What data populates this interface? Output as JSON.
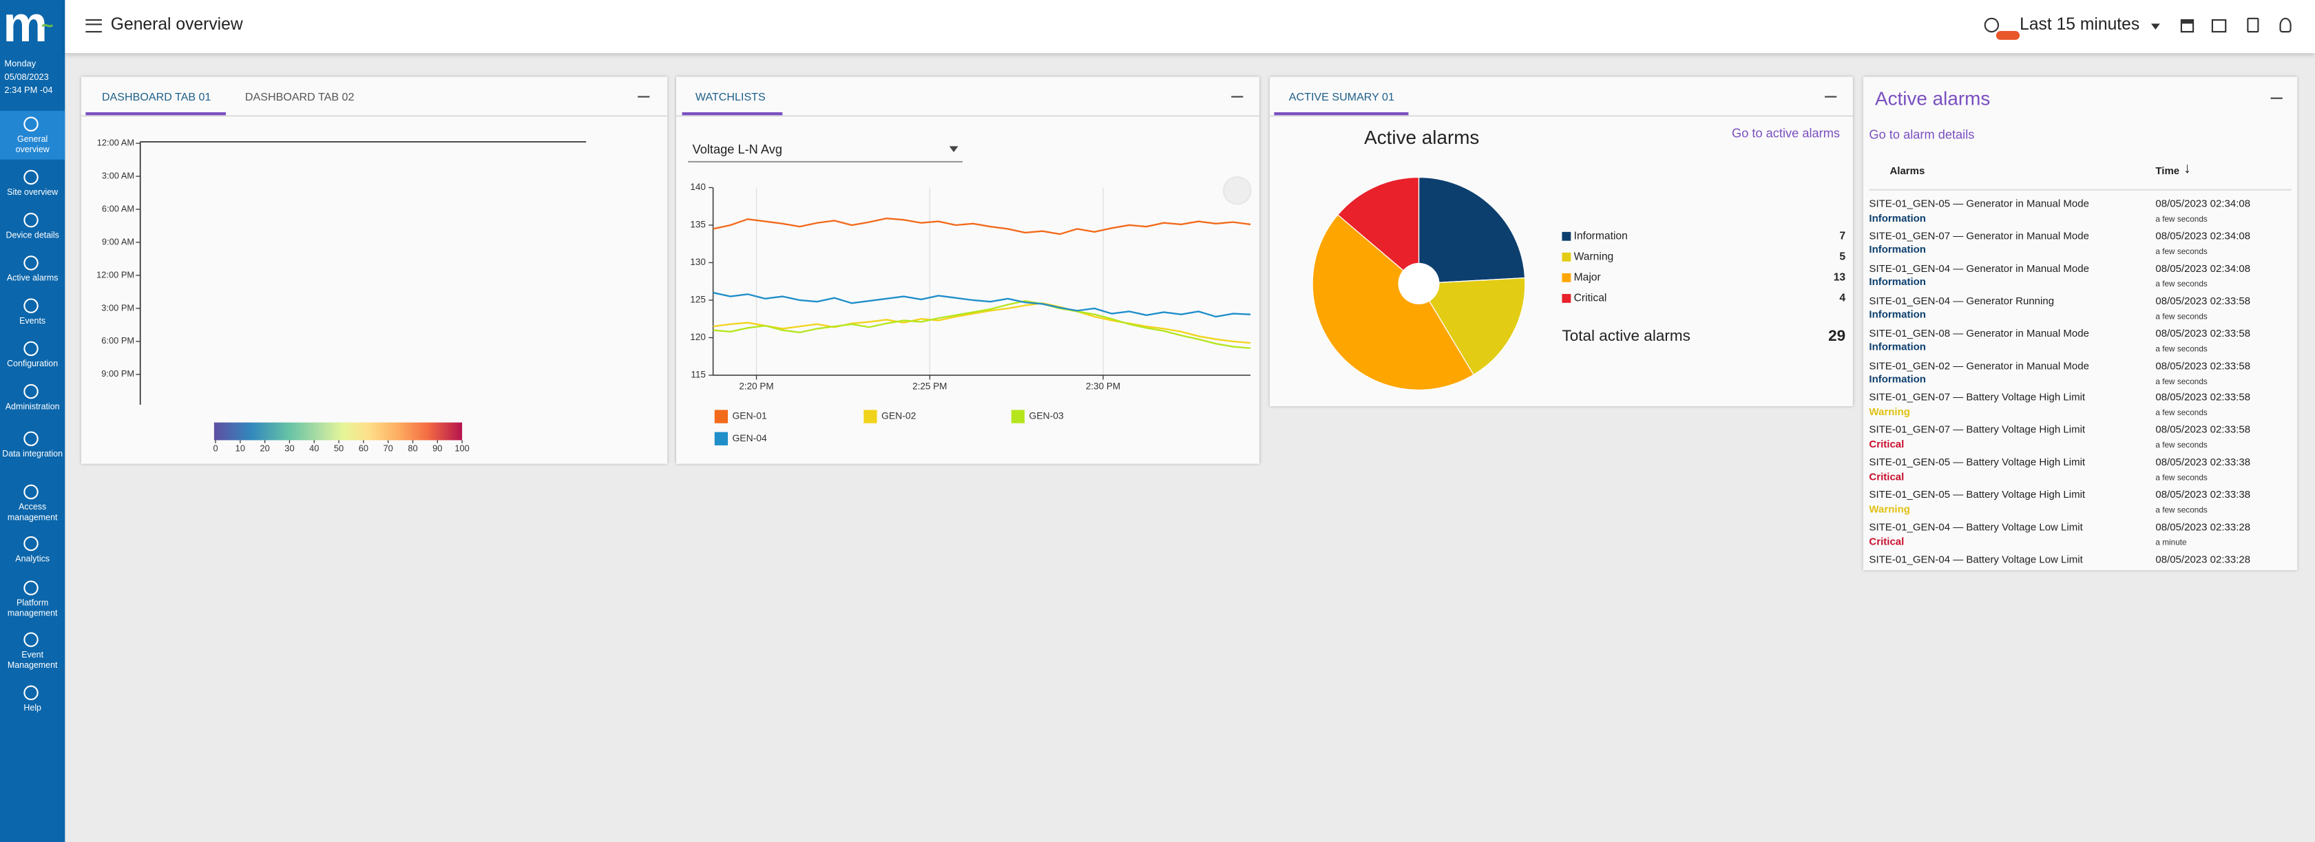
{
  "header": {
    "title": "General overview",
    "time_range": "Last 15 minutes"
  },
  "sidebar": {
    "day": "Monday",
    "date": "05/08/2023",
    "time": "2:34 PM -04",
    "items": [
      "General overview",
      "Site overview",
      "Device details",
      "Active alarms",
      "Events",
      "Configuration",
      "Administration",
      "Data integration",
      "Access management",
      "Analytics",
      "Platform management",
      "Event Management",
      "Help"
    ]
  },
  "dashboard_panel": {
    "tabs": [
      "DASHBOARD TAB 01",
      "DASHBOARD TAB 02"
    ],
    "chart": {
      "type": "heatmap",
      "yticks": [
        "12:00 AM",
        "3:00 AM",
        "6:00 AM",
        "9:00 AM",
        "12:00 PM",
        "3:00 PM",
        "6:00 PM",
        "9:00 PM"
      ],
      "colorbar_ticks": [
        0,
        10,
        20,
        30,
        40,
        50,
        60,
        70,
        80,
        90,
        100
      ]
    }
  },
  "watchlist_panel": {
    "tab": "WATCHLISTS",
    "selector": "Voltage L-N Avg",
    "chart": {
      "type": "line",
      "ylim": [
        115,
        140
      ],
      "yticks": [
        115,
        120,
        125,
        130,
        135,
        140
      ],
      "xlim": [
        0,
        31
      ],
      "xticks": [
        {
          "value": 2.5,
          "label": "2:20 PM"
        },
        {
          "value": 12.5,
          "label": "2:25 PM"
        },
        {
          "value": 22.5,
          "label": "2:30 PM"
        }
      ],
      "grid": true,
      "series": [
        {
          "name": "GEN-01",
          "color": "#f26a1b",
          "values": [
            134.5,
            135,
            135.8,
            135.5,
            135.2,
            134.8,
            135.3,
            135.6,
            135,
            135.4,
            135.9,
            135.7,
            135.3,
            135.5,
            135,
            135.2,
            134.8,
            134.5,
            134,
            134.2,
            133.8,
            134.5,
            134.1,
            134.6,
            135,
            134.8,
            135.3,
            135.1,
            135.5,
            135.2,
            135.4,
            135.1
          ]
        },
        {
          "name": "GEN-02",
          "color": "#f2d31b",
          "values": [
            121.5,
            121.8,
            122,
            121.6,
            121.2,
            121.5,
            121.8,
            121.4,
            121.9,
            122.1,
            122.4,
            122,
            122.5,
            122.3,
            122.8,
            123.2,
            123.6,
            123.9,
            124.3,
            124.6,
            124.1,
            123.5,
            122.8,
            122.3,
            121.9,
            121.5,
            121.2,
            120.8,
            120.2,
            119.8,
            119.5,
            119.3
          ]
        },
        {
          "name": "GEN-03",
          "color": "#b5e61d",
          "values": [
            121,
            120.8,
            121.3,
            121.6,
            121,
            120.7,
            121.2,
            121.5,
            121.8,
            121.4,
            121.9,
            122.3,
            122.1,
            122.6,
            123,
            123.4,
            123.8,
            124.4,
            124.9,
            124.5,
            123.9,
            123.5,
            123.1,
            122.5,
            121.8,
            121.3,
            120.9,
            120.3,
            119.8,
            119.2,
            118.8,
            118.6
          ]
        },
        {
          "name": "GEN-04",
          "color": "#1f8ec9",
          "values": [
            126,
            125.5,
            125.8,
            125.2,
            125.5,
            125,
            124.8,
            125.3,
            124.6,
            124.9,
            125.2,
            125.5,
            125.1,
            125.6,
            125.3,
            125,
            124.8,
            125.2,
            124.7,
            124.5,
            124,
            123.6,
            123.9,
            123.2,
            123.5,
            123,
            123.4,
            123.1,
            123.5,
            122.8,
            123.2,
            123.1
          ]
        }
      ]
    }
  },
  "summary_panel": {
    "tab": "ACTIVE SUMARY 01",
    "link": "Go to active alarms",
    "chart": {
      "type": "pie",
      "title": "Active alarms",
      "categories": [
        "Information",
        "Warning",
        "Major",
        "Critical"
      ],
      "values": [
        7,
        5,
        13,
        4
      ],
      "colors": [
        "#0d3f6e",
        "#e3cc14",
        "#ffa500",
        "#e8212b"
      ]
    },
    "total_label": "Total active alarms",
    "total": 29
  },
  "alarms_panel": {
    "title": "Active alarms",
    "link": "Go to alarm details",
    "columns": [
      "Alarms",
      "Time"
    ],
    "rows": [
      {
        "alarm": "SITE-01_GEN-05 — Generator in Manual Mode",
        "severity": "Information",
        "time": "08/05/2023 02:34:08",
        "age": "a few seconds"
      },
      {
        "alarm": "SITE-01_GEN-07 — Generator in Manual Mode",
        "severity": "Information",
        "time": "08/05/2023 02:34:08",
        "age": "a few seconds"
      },
      {
        "alarm": "SITE-01_GEN-04 — Generator in Manual Mode",
        "severity": "Information",
        "time": "08/05/2023 02:34:08",
        "age": "a few seconds"
      },
      {
        "alarm": "SITE-01_GEN-04 — Generator Running",
        "severity": "Information",
        "time": "08/05/2023 02:33:58",
        "age": "a few seconds"
      },
      {
        "alarm": "SITE-01_GEN-08 — Generator in Manual Mode",
        "severity": "Information",
        "time": "08/05/2023 02:33:58",
        "age": "a few seconds"
      },
      {
        "alarm": "SITE-01_GEN-02 — Generator in Manual Mode",
        "severity": "Information",
        "time": "08/05/2023 02:33:58",
        "age": "a few seconds"
      },
      {
        "alarm": "SITE-01_GEN-07 — Battery Voltage High Limit",
        "severity": "Warning",
        "time": "08/05/2023 02:33:58",
        "age": "a few seconds"
      },
      {
        "alarm": "SITE-01_GEN-07 — Battery Voltage High Limit",
        "severity": "Critical",
        "time": "08/05/2023 02:33:58",
        "age": "a few seconds"
      },
      {
        "alarm": "SITE-01_GEN-05 — Battery Voltage High Limit",
        "severity": "Critical",
        "time": "08/05/2023 02:33:38",
        "age": "a few seconds"
      },
      {
        "alarm": "SITE-01_GEN-05 — Battery Voltage High Limit",
        "severity": "Warning",
        "time": "08/05/2023 02:33:38",
        "age": "a few seconds"
      },
      {
        "alarm": "SITE-01_GEN-04 — Battery Voltage Low Limit",
        "severity": "Critical",
        "time": "08/05/2023 02:33:28",
        "age": "a minute"
      },
      {
        "alarm": "SITE-01_GEN-04 — Battery Voltage Low Limit",
        "time": "08/05/2023 02:33:28"
      }
    ]
  }
}
